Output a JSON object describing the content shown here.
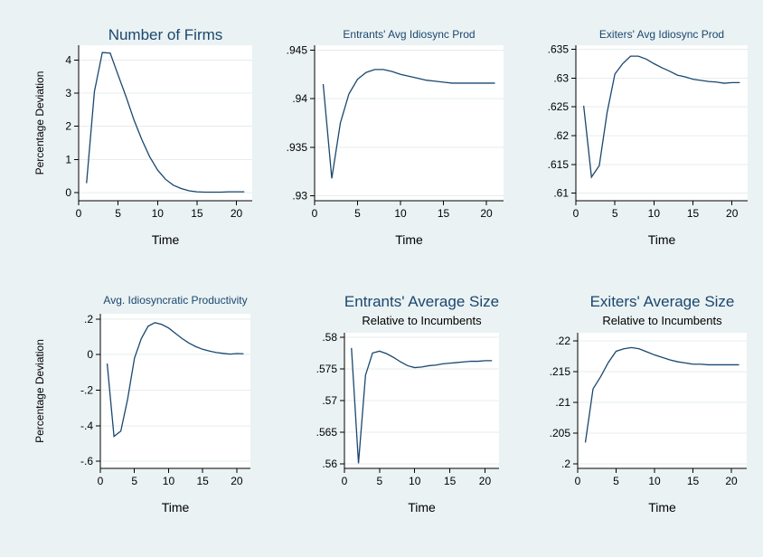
{
  "figure": {
    "background": "#eaf2f3",
    "line_color": "#1a476f"
  },
  "chart_data": [
    {
      "type": "line",
      "title": "Number of Firms",
      "subtitle": "",
      "xlabel": "Time",
      "ylabel": "Percentage Deviation",
      "xlim": [
        0,
        22
      ],
      "ylim": [
        -0.25,
        4.45
      ],
      "xticks": [
        0,
        5,
        10,
        15,
        20
      ],
      "xtick_labels": [
        "0",
        "5",
        "10",
        "15",
        "20"
      ],
      "yticks": [
        0,
        1,
        2,
        3,
        4
      ],
      "ytick_labels": [
        "0",
        "1",
        "2",
        "3",
        "4"
      ],
      "grid": true,
      "series": [
        {
          "x": [
            1,
            2,
            3,
            4,
            5,
            6,
            7,
            8,
            9,
            10,
            11,
            12,
            13,
            14,
            15,
            16,
            17,
            18,
            19,
            20,
            21
          ],
          "y": [
            0.28,
            3.05,
            4.23,
            4.21,
            3.55,
            2.9,
            2.2,
            1.6,
            1.08,
            0.68,
            0.4,
            0.22,
            0.12,
            0.05,
            0.02,
            0.01,
            0.01,
            0.01,
            0.02,
            0.02,
            0.02
          ]
        }
      ]
    },
    {
      "type": "line",
      "title": "Entrants' Avg Idiosync Prod",
      "subtitle": "",
      "xlabel": "Time",
      "ylabel": "",
      "xlim": [
        0,
        22
      ],
      "ylim": [
        0.9295,
        0.9455
      ],
      "xticks": [
        0,
        5,
        10,
        15,
        20
      ],
      "xtick_labels": [
        "0",
        "5",
        "10",
        "15",
        "20"
      ],
      "yticks": [
        0.93,
        0.935,
        0.94,
        0.945
      ],
      "ytick_labels": [
        ".93",
        ".935",
        ".94",
        ".945"
      ],
      "grid": true,
      "series": [
        {
          "x": [
            1,
            2,
            3,
            4,
            5,
            6,
            7,
            8,
            9,
            10,
            11,
            12,
            13,
            14,
            15,
            16,
            17,
            18,
            19,
            20,
            21
          ],
          "y": [
            0.9415,
            0.9318,
            0.9375,
            0.9405,
            0.942,
            0.9427,
            0.943,
            0.943,
            0.9428,
            0.9425,
            0.9423,
            0.9421,
            0.9419,
            0.9418,
            0.9417,
            0.9416,
            0.9416,
            0.9416,
            0.9416,
            0.9416,
            0.9416
          ]
        }
      ]
    },
    {
      "type": "line",
      "title": "Exiters' Avg Idiosync Prod",
      "subtitle": "",
      "xlabel": "Time",
      "ylabel": "",
      "xlim": [
        0,
        22
      ],
      "ylim": [
        0.6087,
        0.6357
      ],
      "xticks": [
        0,
        5,
        10,
        15,
        20
      ],
      "xtick_labels": [
        "0",
        "5",
        "10",
        "15",
        "20"
      ],
      "yticks": [
        0.61,
        0.615,
        0.62,
        0.625,
        0.63,
        0.635
      ],
      "ytick_labels": [
        ".61",
        ".615",
        ".62",
        ".625",
        ".63",
        ".635"
      ],
      "grid": true,
      "series": [
        {
          "x": [
            1,
            2,
            3,
            4,
            5,
            6,
            7,
            8,
            9,
            10,
            11,
            12,
            13,
            14,
            15,
            16,
            17,
            18,
            19,
            20,
            21
          ],
          "y": [
            0.6252,
            0.6128,
            0.6148,
            0.624,
            0.6307,
            0.6325,
            0.6338,
            0.6338,
            0.6333,
            0.6325,
            0.6318,
            0.6312,
            0.6305,
            0.6302,
            0.6298,
            0.6296,
            0.6294,
            0.6293,
            0.6291,
            0.6292,
            0.6292
          ]
        }
      ]
    },
    {
      "type": "line",
      "title": "Avg. Idiosyncratic Productivity",
      "subtitle": "",
      "xlabel": "Time",
      "ylabel": "Percentage Deviation",
      "xlim": [
        0,
        22
      ],
      "ylim": [
        -0.64,
        0.23
      ],
      "xticks": [
        0,
        5,
        10,
        15,
        20
      ],
      "xtick_labels": [
        "0",
        "5",
        "10",
        "15",
        "20"
      ],
      "yticks": [
        -0.6,
        -0.4,
        -0.2,
        0,
        0.2
      ],
      "ytick_labels": [
        "-.6",
        "-.4",
        "-.2",
        "0",
        ".2"
      ],
      "grid": true,
      "series": [
        {
          "x": [
            1,
            2,
            3,
            4,
            5,
            6,
            7,
            8,
            9,
            10,
            11,
            12,
            13,
            14,
            15,
            16,
            17,
            18,
            19,
            20,
            21
          ],
          "y": [
            -0.05,
            -0.46,
            -0.43,
            -0.25,
            -0.02,
            0.09,
            0.16,
            0.18,
            0.17,
            0.15,
            0.12,
            0.09,
            0.065,
            0.045,
            0.03,
            0.02,
            0.012,
            0.007,
            0.003,
            0.006,
            0.005
          ]
        }
      ]
    },
    {
      "type": "line",
      "title": "Entrants' Average Size",
      "subtitle": "Relative to Incumbents",
      "xlabel": "Time",
      "ylabel": "",
      "xlim": [
        0,
        22
      ],
      "ylim": [
        0.5593,
        0.5807
      ],
      "xticks": [
        0,
        5,
        10,
        15,
        20
      ],
      "xtick_labels": [
        "0",
        "5",
        "10",
        "15",
        "20"
      ],
      "yticks": [
        0.56,
        0.565,
        0.57,
        0.575,
        0.58
      ],
      "ytick_labels": [
        ".56",
        ".565",
        ".57",
        ".575",
        ".58"
      ],
      "grid": true,
      "series": [
        {
          "x": [
            1,
            2,
            3,
            4,
            5,
            6,
            7,
            8,
            9,
            10,
            11,
            12,
            13,
            14,
            15,
            16,
            17,
            18,
            19,
            20,
            21
          ],
          "y": [
            0.5783,
            0.5601,
            0.574,
            0.5775,
            0.5778,
            0.5774,
            0.5768,
            0.5761,
            0.5755,
            0.5752,
            0.5753,
            0.5755,
            0.5756,
            0.5758,
            0.5759,
            0.576,
            0.5761,
            0.5762,
            0.5762,
            0.5763,
            0.5763
          ]
        }
      ]
    },
    {
      "type": "line",
      "title": "Exiters' Average Size",
      "subtitle": "Relative to Incumbents",
      "xlabel": "Time",
      "ylabel": "",
      "xlim": [
        0,
        22
      ],
      "ylim": [
        0.1993,
        0.2213
      ],
      "xticks": [
        0,
        5,
        10,
        15,
        20
      ],
      "xtick_labels": [
        "0",
        "5",
        "10",
        "15",
        "20"
      ],
      "yticks": [
        0.2,
        0.205,
        0.21,
        0.215,
        0.22
      ],
      "ytick_labels": [
        ".2",
        ".205",
        ".21",
        ".215",
        ".22"
      ],
      "grid": true,
      "series": [
        {
          "x": [
            1,
            2,
            3,
            4,
            5,
            6,
            7,
            8,
            9,
            10,
            11,
            12,
            13,
            14,
            15,
            16,
            17,
            18,
            19,
            20,
            21
          ],
          "y": [
            0.2035,
            0.2122,
            0.2142,
            0.2165,
            0.2183,
            0.2187,
            0.2189,
            0.2187,
            0.2182,
            0.2177,
            0.2173,
            0.2169,
            0.2166,
            0.2164,
            0.2162,
            0.2162,
            0.2161,
            0.2161,
            0.2161,
            0.2161,
            0.2161
          ]
        }
      ]
    }
  ]
}
